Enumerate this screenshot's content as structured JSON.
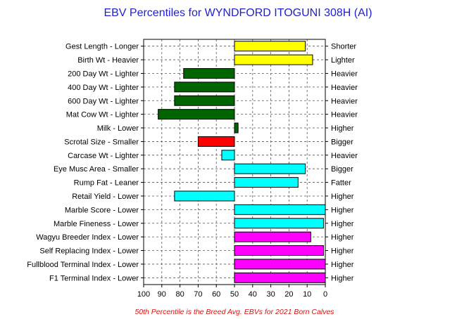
{
  "chart_data": {
    "type": "bar",
    "orientation": "horizontal",
    "title": "EBV Percentiles for WYNDFORD ITOGUNI 308H (AI)",
    "footnote": "50th Percentile is the Breed Avg. EBVs for 2021 Born Calves",
    "x_axis": {
      "reversed": true,
      "xlim": [
        100,
        0
      ],
      "ticks": [
        "100",
        "90",
        "80",
        "70",
        "60",
        "50",
        "40",
        "30",
        "20",
        "10",
        "0"
      ]
    },
    "baseline": 50,
    "grid": true,
    "traits": [
      {
        "left_label": "Gest Length - Longer",
        "right_label": "Shorter",
        "percentile": 11,
        "color": "#ffff00"
      },
      {
        "left_label": "Birth Wt - Heavier",
        "right_label": "Lighter",
        "percentile": 7,
        "color": "#ffff00"
      },
      {
        "left_label": "200 Day Wt - Lighter",
        "right_label": "Heavier",
        "percentile": 78,
        "color": "#006400"
      },
      {
        "left_label": "400 Day Wt - Lighter",
        "right_label": "Heavier",
        "percentile": 83,
        "color": "#006400"
      },
      {
        "left_label": "600 Day Wt - Lighter",
        "right_label": "Heavier",
        "percentile": 83,
        "color": "#006400"
      },
      {
        "left_label": "Mat Cow Wt - Lighter",
        "right_label": "Heavier",
        "percentile": 92,
        "color": "#006400"
      },
      {
        "left_label": "Milk - Lower",
        "right_label": "Higher",
        "percentile": 48,
        "color": "#006400"
      },
      {
        "left_label": "Scrotal Size - Smaller",
        "right_label": "Bigger",
        "percentile": 70,
        "color": "#ff0000"
      },
      {
        "left_label": "Carcase Wt - Lighter",
        "right_label": "Heavier",
        "percentile": 57,
        "color": "#00ffff"
      },
      {
        "left_label": "Eye Musc Area - Smaller",
        "right_label": "Bigger",
        "percentile": 11,
        "color": "#00ffff"
      },
      {
        "left_label": "Rump Fat - Leaner",
        "right_label": "Fatter",
        "percentile": 15,
        "color": "#00ffff"
      },
      {
        "left_label": "Retail Yield - Lower",
        "right_label": "Higher",
        "percentile": 83,
        "color": "#00ffff"
      },
      {
        "left_label": "Marble Score - Lower",
        "right_label": "Higher",
        "percentile": 0,
        "color": "#00ffff"
      },
      {
        "left_label": "Marble Fineness - Lower",
        "right_label": "Higher",
        "percentile": 1,
        "color": "#00ffff"
      },
      {
        "left_label": "Wagyu Breeder Index - Lower",
        "right_label": "Higher",
        "percentile": 8,
        "color": "#ff00ff"
      },
      {
        "left_label": "Self Replacing Index - Lower",
        "right_label": "Higher",
        "percentile": 1,
        "color": "#ff00ff"
      },
      {
        "left_label": "Fullblood Terminal Index - Lower",
        "right_label": "Higher",
        "percentile": 0,
        "color": "#ff00ff"
      },
      {
        "left_label": "F1 Terminal Index - Lower",
        "right_label": "Higher",
        "percentile": 0,
        "color": "#ff00ff"
      }
    ]
  }
}
